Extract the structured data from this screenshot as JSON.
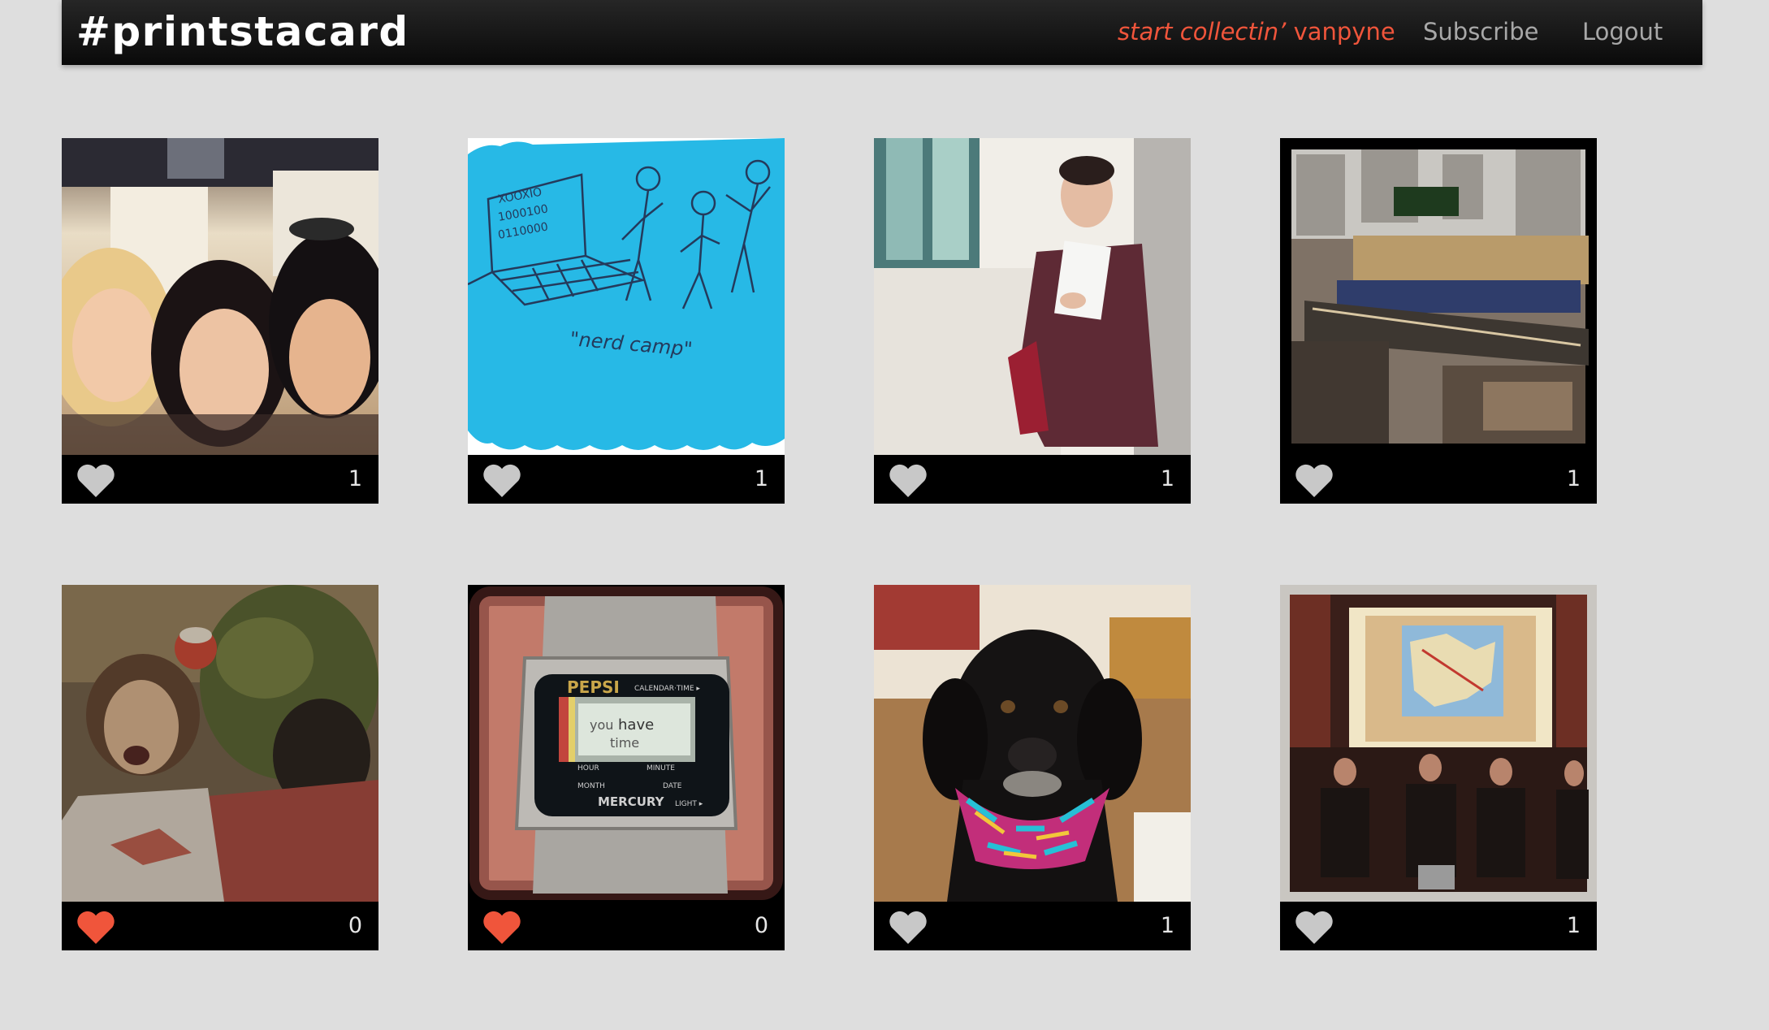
{
  "header": {
    "brand": "#printstacard",
    "promo_italic": "start collectin’",
    "promo_user": "vanpyne",
    "subscribe_label": "Subscribe",
    "logout_label": "Logout"
  },
  "colors": {
    "accent": "#f0553b",
    "heart_inactive": "#c8c8c8",
    "background": "#dedede",
    "nav_bar": "#111111"
  },
  "cards": [
    {
      "subject": "three friends selfie",
      "liked": false,
      "likes": "1"
    },
    {
      "subject": "blue nerd camp drawing",
      "liked": false,
      "likes": "1"
    },
    {
      "subject": "woman in maroon blazer",
      "liked": false,
      "likes": "1"
    },
    {
      "subject": "city rooftop tilt shift",
      "liked": false,
      "likes": "1"
    },
    {
      "subject": "holiday party photo",
      "liked": true,
      "likes": "0"
    },
    {
      "subject": "pepsi mercury watch",
      "liked": true,
      "likes": "0"
    },
    {
      "subject": "black dog with bandana",
      "liked": false,
      "likes": "1"
    },
    {
      "subject": "presentation audience map",
      "liked": false,
      "likes": "1"
    }
  ]
}
